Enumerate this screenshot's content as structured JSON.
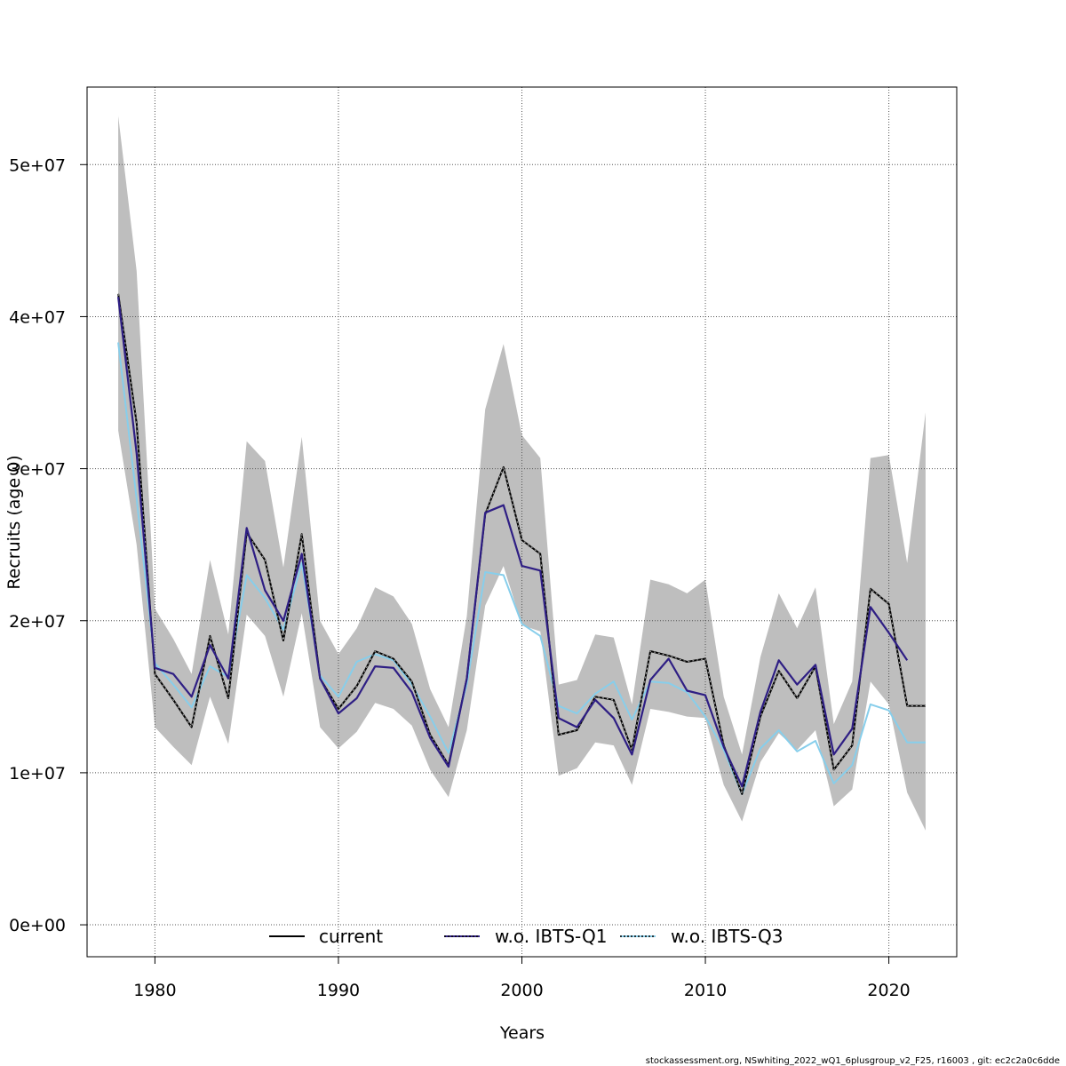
{
  "chart_data": {
    "type": "line",
    "xlabel": "Years",
    "ylabel": "Recruits (age 0)",
    "xlim": [
      1976.3,
      2023.7
    ],
    "ylim": [
      -2100000,
      55100000
    ],
    "x_ticks": [
      1980,
      1990,
      2000,
      2010,
      2020
    ],
    "x_tick_labels": [
      "1980",
      "1990",
      "2000",
      "2010",
      "2020"
    ],
    "y_ticks": [
      0,
      10000000,
      20000000,
      30000000,
      40000000,
      50000000
    ],
    "y_tick_labels": [
      "0e+00",
      "1e+07",
      "2e+07",
      "3e+07",
      "4e+07",
      "5e+07"
    ],
    "grid": true,
    "legend_position": "bottom-center",
    "colors": {
      "band": "#bebebe",
      "current": "#000000",
      "q1": "#2e1e84",
      "q3": "#87ceeb",
      "grid": "#555555"
    },
    "years": [
      1978,
      1979,
      1980,
      1981,
      1982,
      1983,
      1984,
      1985,
      1986,
      1987,
      1988,
      1989,
      1990,
      1991,
      1992,
      1993,
      1994,
      1995,
      1996,
      1997,
      1998,
      1999,
      2000,
      2001,
      2002,
      2003,
      2004,
      2005,
      2006,
      2007,
      2008,
      2009,
      2010,
      2011,
      2012,
      2013,
      2014,
      2015,
      2016,
      2017,
      2018,
      2019,
      2020,
      2021,
      2022
    ],
    "band": {
      "lower": [
        32500000,
        25000000,
        13000000,
        11700000,
        10500000,
        15000000,
        11900000,
        20400000,
        19000000,
        15000000,
        20500000,
        13000000,
        11600000,
        12700000,
        14600000,
        14200000,
        13100000,
        10200000,
        8400000,
        12800000,
        21000000,
        23600000,
        19700000,
        19300000,
        9800000,
        10300000,
        12000000,
        11800000,
        9200000,
        14200000,
        14000000,
        13700000,
        13600000,
        9200000,
        6800000,
        10700000,
        12600000,
        11500000,
        12800000,
        7800000,
        8900000,
        16000000,
        14500000,
        8700000,
        6200000
      ],
      "upper": [
        53200000,
        43000000,
        20800000,
        18800000,
        16500000,
        24000000,
        19100000,
        31800000,
        30500000,
        23500000,
        32100000,
        20000000,
        17800000,
        19500000,
        22200000,
        21600000,
        19800000,
        15500000,
        13000000,
        20300000,
        33900000,
        38200000,
        32200000,
        30700000,
        15800000,
        16100000,
        19100000,
        18900000,
        14500000,
        22700000,
        22400000,
        21800000,
        22700000,
        15000000,
        11200000,
        17600000,
        21800000,
        19500000,
        22200000,
        13200000,
        16000000,
        30700000,
        30900000,
        23800000,
        33700000
      ]
    },
    "series": [
      {
        "name": "current",
        "values": [
          41500000,
          33000000,
          16500000,
          14800000,
          13000000,
          19000000,
          14900000,
          25800000,
          24000000,
          18700000,
          25700000,
          16200000,
          14200000,
          15700000,
          18000000,
          17500000,
          16000000,
          12500000,
          10500000,
          16200000,
          27000000,
          30100000,
          25300000,
          24400000,
          12500000,
          12800000,
          15000000,
          14800000,
          11500000,
          18000000,
          17700000,
          17300000,
          17500000,
          11800000,
          8600000,
          13700000,
          16700000,
          14900000,
          17000000,
          10200000,
          11800000,
          22100000,
          21100000,
          14400000,
          14400000
        ]
      },
      {
        "name": "w.o. IBTS-Q1",
        "values": [
          41300000,
          31000000,
          16900000,
          16500000,
          15000000,
          18400000,
          16200000,
          26100000,
          22000000,
          20000000,
          24400000,
          16200000,
          13900000,
          14900000,
          17000000,
          16900000,
          15300000,
          12300000,
          10400000,
          16200000,
          27100000,
          27600000,
          23600000,
          23300000,
          13600000,
          13000000,
          14800000,
          13600000,
          11200000,
          16100000,
          17500000,
          15400000,
          15100000,
          11700000,
          9100000,
          14000000,
          17400000,
          15800000,
          17100000,
          11200000,
          12900000,
          20900000,
          19200000,
          17400000,
          null
        ]
      },
      {
        "name": "w.o. IBTS-Q3",
        "values": [
          38300000,
          28000000,
          17200000,
          15800000,
          14300000,
          17000000,
          16300000,
          23000000,
          21500000,
          19400000,
          23800000,
          16400000,
          15000000,
          17300000,
          17800000,
          17400000,
          15800000,
          13700000,
          11300000,
          15800000,
          23200000,
          23000000,
          19800000,
          19000000,
          14400000,
          13900000,
          15200000,
          16000000,
          13500000,
          16000000,
          15900000,
          15300000,
          13700000,
          11500000,
          8600000,
          11600000,
          12800000,
          11400000,
          12100000,
          9300000,
          10500000,
          14500000,
          14100000,
          12000000,
          12000000
        ]
      }
    ]
  },
  "footer": "stockassessment.org, NSwhiting_2022_wQ1_6plusgroup_v2_F25, r16003 , git: ec2c2a0c6dde"
}
